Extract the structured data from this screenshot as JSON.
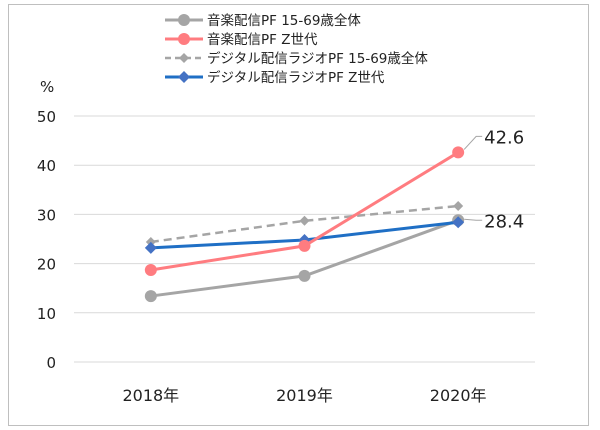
{
  "chart_data": {
    "type": "line",
    "categories": [
      "2018年",
      "2019年",
      "2020年"
    ],
    "yunit": "%",
    "ylim": [
      0,
      50
    ],
    "yticks": [
      0,
      10,
      20,
      30,
      40,
      50
    ],
    "grid": true,
    "legend_position": "top",
    "series": [
      {
        "name": "音楽配信PF 15-69歳全体",
        "values": [
          13.4,
          17.5,
          28.8
        ],
        "color": "#a5a5a5",
        "dash": false,
        "marker": "circle"
      },
      {
        "name": "音楽配信PF Z世代",
        "values": [
          18.7,
          23.6,
          42.6
        ],
        "color": "#ff7c80",
        "dash": false,
        "marker": "circle"
      },
      {
        "name": "デジタル配信ラジオPF 15-69歳全体",
        "values": [
          24.4,
          28.7,
          31.7
        ],
        "color": "#a5a5a5",
        "dash": true,
        "marker": "diamond"
      },
      {
        "name": "デジタル配信ラジオPF Z世代",
        "values": [
          23.2,
          24.8,
          28.4
        ],
        "color": "#1f6fc5",
        "markerColor": "#4472c4",
        "dash": false,
        "marker": "diamond"
      }
    ],
    "data_labels": [
      {
        "series": 1,
        "index": 2,
        "text": "42.6"
      },
      {
        "series": 3,
        "index": 2,
        "text": "28.4"
      }
    ]
  }
}
